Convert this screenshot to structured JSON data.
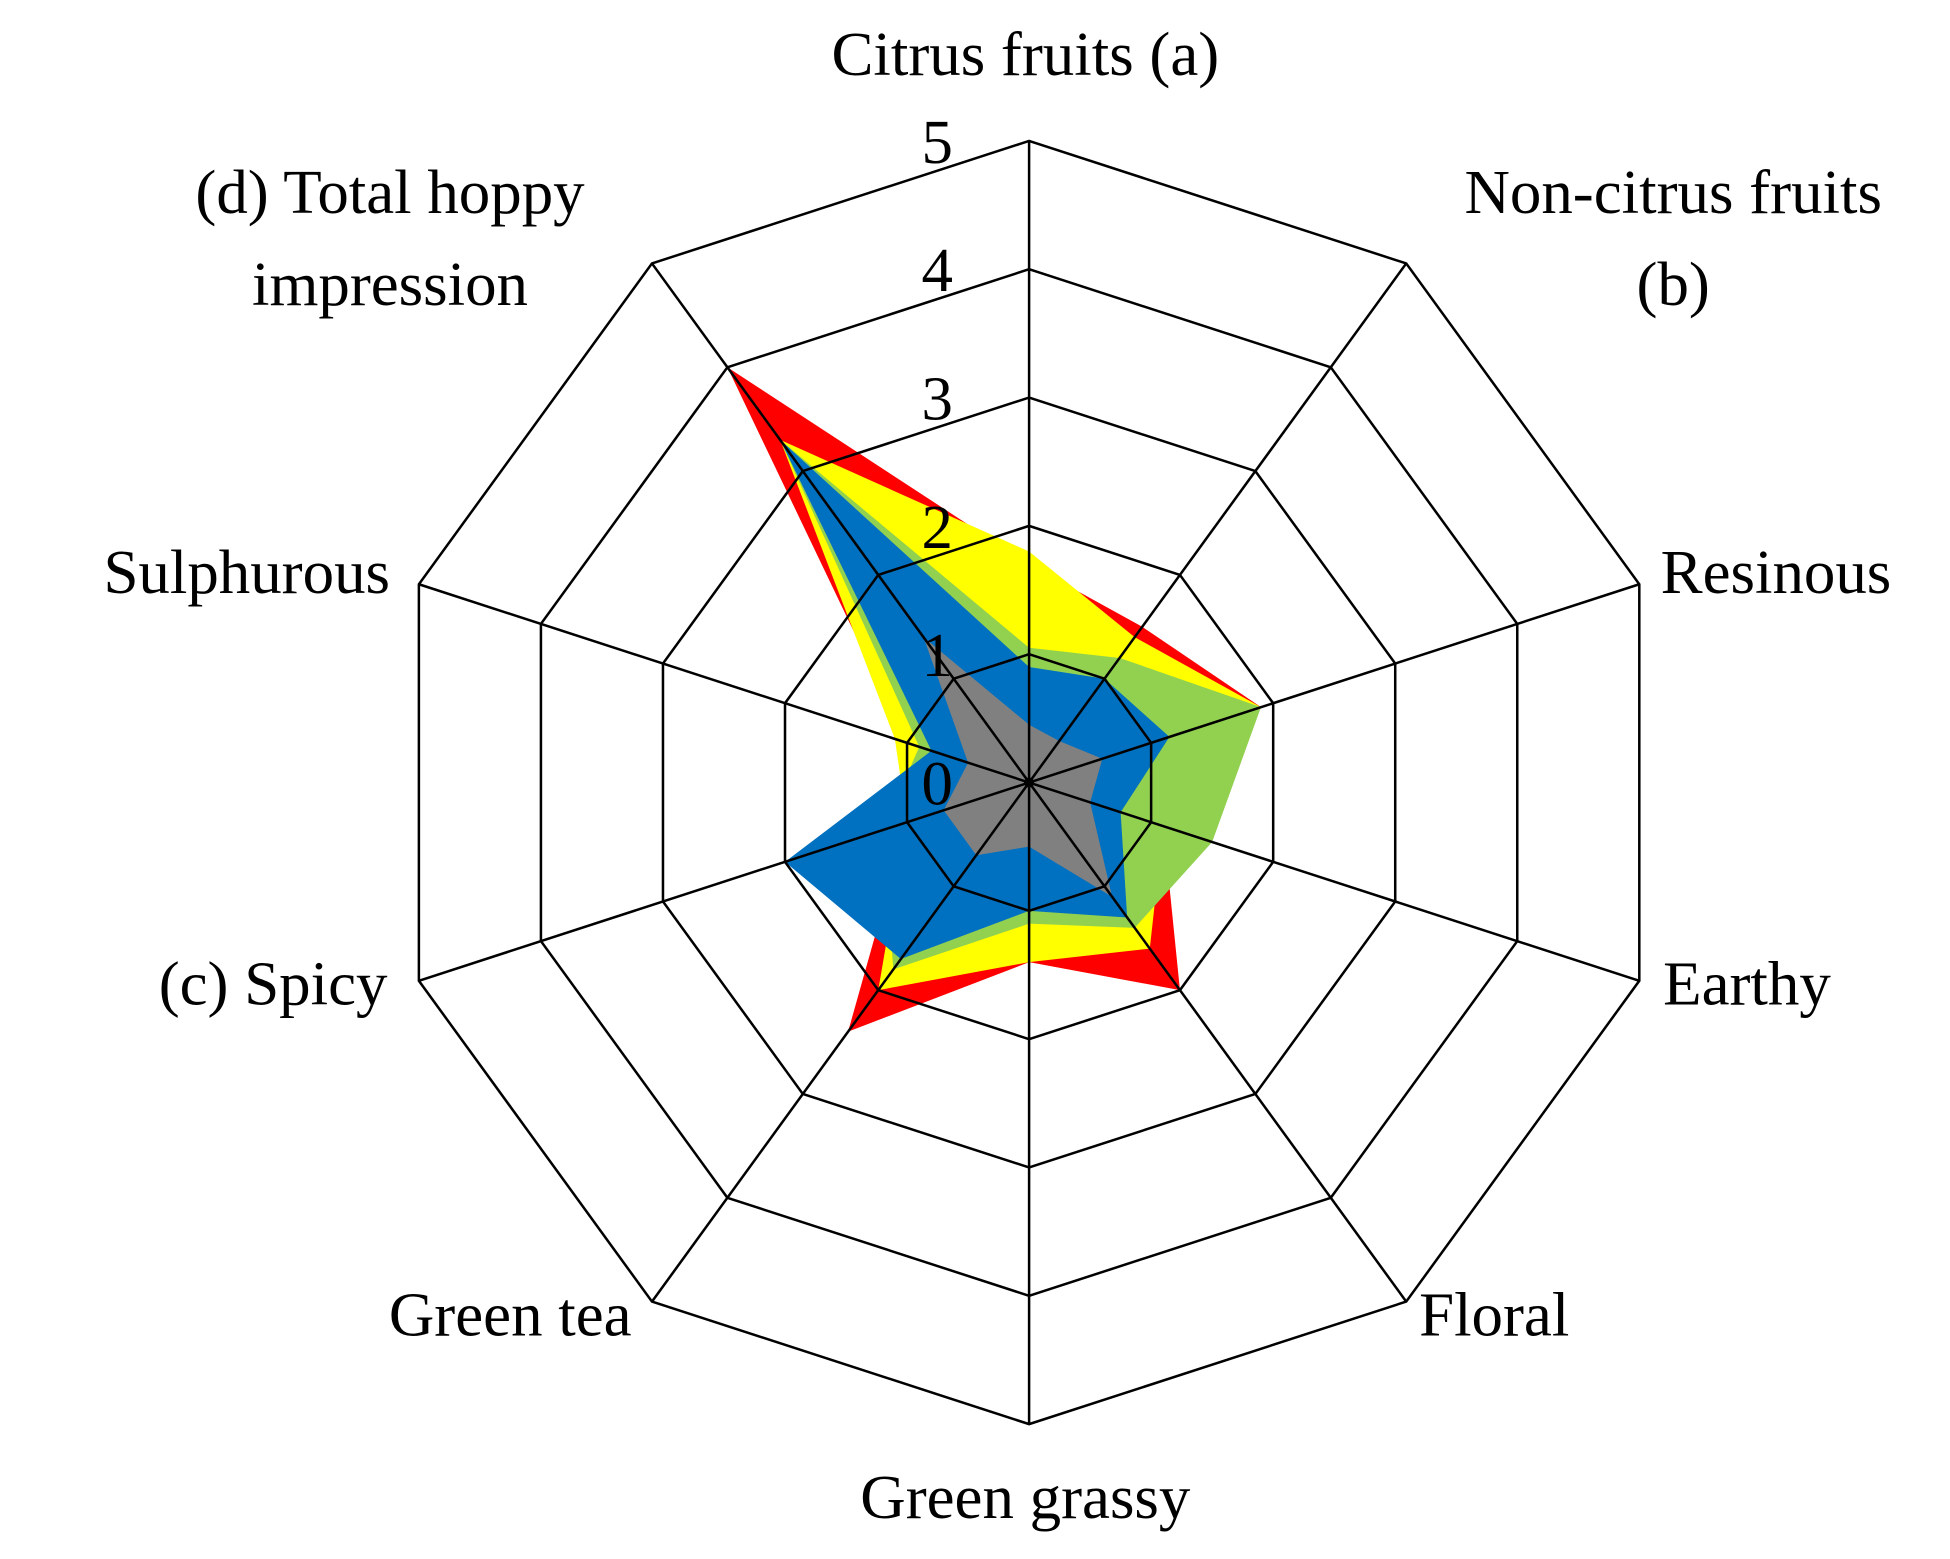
{
  "chart_data": {
    "type": "radar",
    "categories": [
      [
        "Citrus fruits (a)"
      ],
      [
        "Non-citrus fruits",
        "(b)"
      ],
      [
        "Resinous"
      ],
      [
        "Earthy"
      ],
      [
        "Floral"
      ],
      [
        "Green grassy"
      ],
      [
        "Green tea"
      ],
      [
        "(c) Spicy"
      ],
      [
        "Sulphurous"
      ],
      [
        "(d) Total hoppy",
        "impression"
      ]
    ],
    "rlim": [
      0,
      5
    ],
    "rticks": [
      0,
      1,
      2,
      3,
      4,
      5
    ],
    "series": [
      {
        "color": "#ff0000",
        "values": [
          1.7,
          1.5,
          1.9,
          1.1,
          2.0,
          1.4,
          2.4,
          1.0,
          1.0,
          4.0
        ]
      },
      {
        "color": "#ffff00",
        "values": [
          1.8,
          1.4,
          1.9,
          1.1,
          1.6,
          1.4,
          2.0,
          1.0,
          1.1,
          3.3
        ]
      },
      {
        "color": "#92d050",
        "values": [
          1.05,
          1.2,
          1.9,
          1.5,
          1.4,
          1.1,
          1.8,
          1.2,
          0.9,
          3.3
        ]
      },
      {
        "color": "#0070c0",
        "values": [
          0.9,
          1.0,
          1.15,
          0.75,
          1.3,
          1.0,
          1.7,
          2.0,
          0.8,
          3.3
        ]
      },
      {
        "color": "#808080",
        "values": [
          0.45,
          0.4,
          0.6,
          0.5,
          1.1,
          0.5,
          0.7,
          0.7,
          0.5,
          1.4
        ]
      }
    ]
  }
}
